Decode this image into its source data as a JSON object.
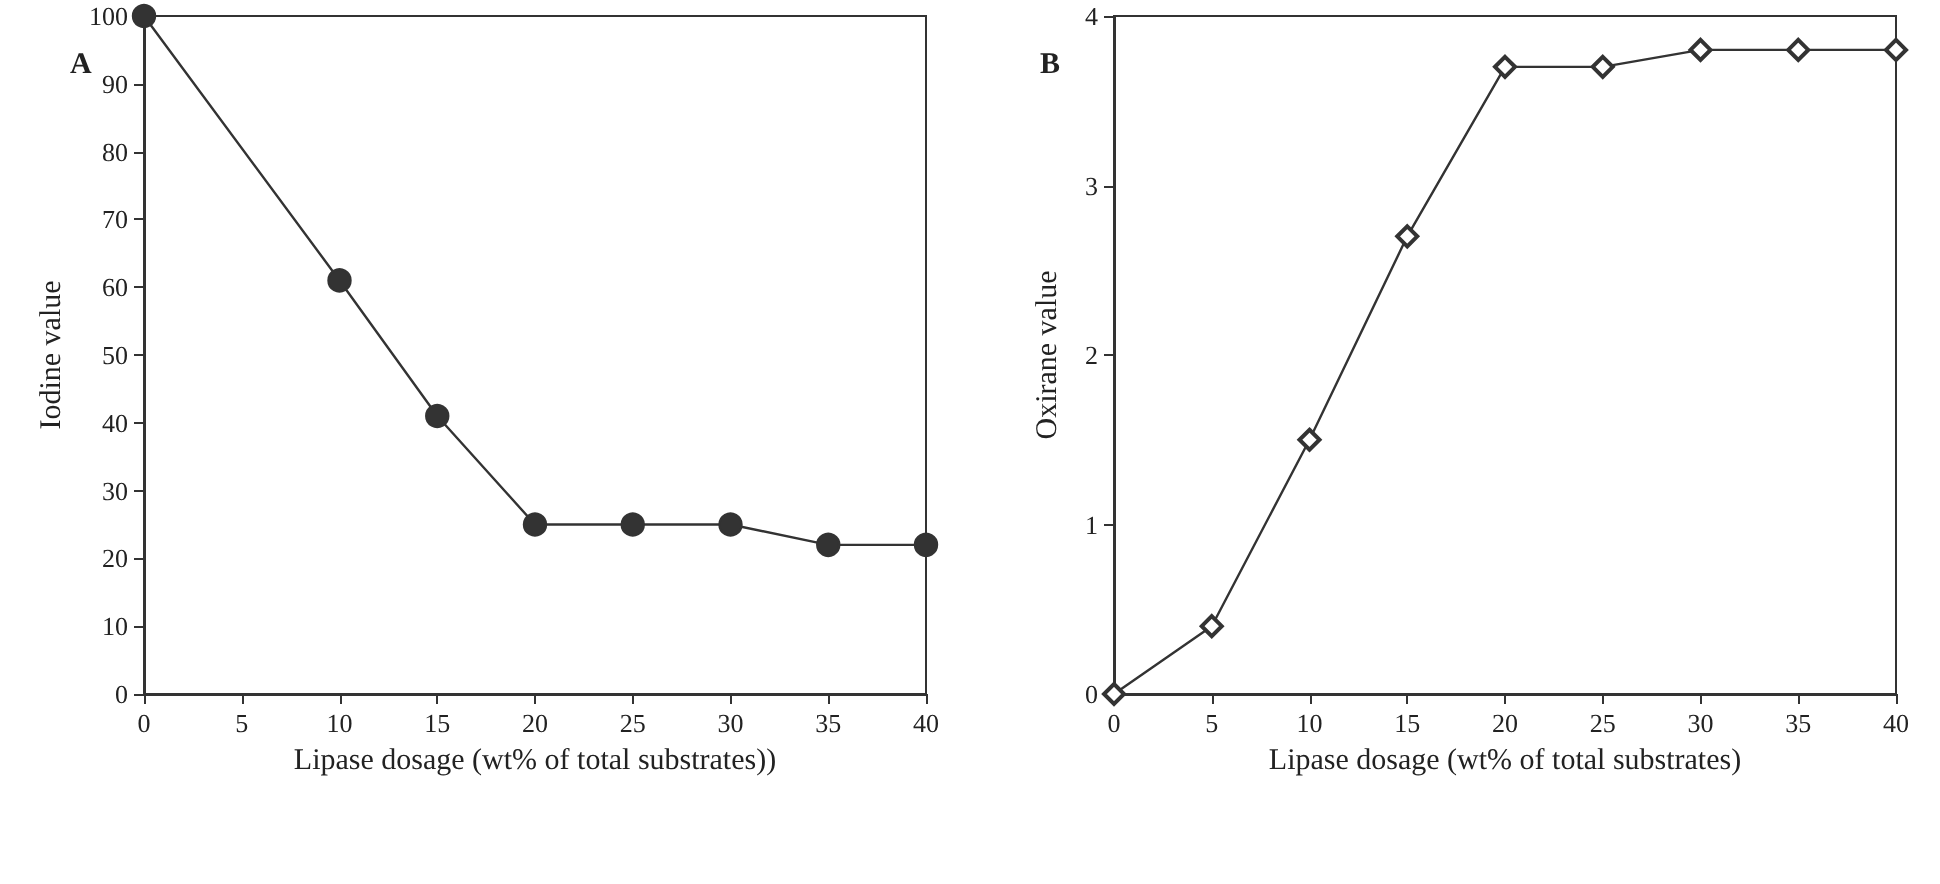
{
  "chart_data": [
    {
      "type": "line",
      "title": "A",
      "xlabel": "Lipase dosage (wt% of total substrates))",
      "ylabel": "Iodine value",
      "x": [
        0,
        10,
        15,
        20,
        25,
        30,
        35,
        40
      ],
      "series": [
        {
          "color": "#333333",
          "values": [
            100,
            61,
            41,
            25,
            25,
            25,
            22,
            22
          ]
        }
      ],
      "xlim": [
        0,
        40
      ],
      "xticks": [
        0,
        5,
        10,
        15,
        20,
        25,
        30,
        35,
        40
      ],
      "ylim": [
        0,
        100
      ],
      "yticks": [
        0,
        10,
        20,
        30,
        40,
        50,
        60,
        70,
        80,
        90,
        100
      ],
      "marker": "circle",
      "line_style": "solid"
    },
    {
      "type": "line",
      "title": "B",
      "xlabel": "Lipase dosage (wt% of total substrates)",
      "ylabel": "Oxirane value",
      "x": [
        0,
        5,
        10,
        15,
        20,
        25,
        30,
        35,
        40
      ],
      "series": [
        {
          "color": "#333333",
          "values": [
            0,
            0.4,
            1.5,
            2.7,
            3.7,
            3.7,
            3.8,
            3.8,
            3.8
          ]
        }
      ],
      "xlim": [
        0,
        40
      ],
      "xticks": [
        0,
        5,
        10,
        15,
        20,
        25,
        30,
        35,
        40
      ],
      "ylim": [
        0,
        4
      ],
      "yticks": [
        0,
        1,
        2,
        3,
        4
      ],
      "marker": "diamond",
      "line_style": "solid"
    }
  ]
}
